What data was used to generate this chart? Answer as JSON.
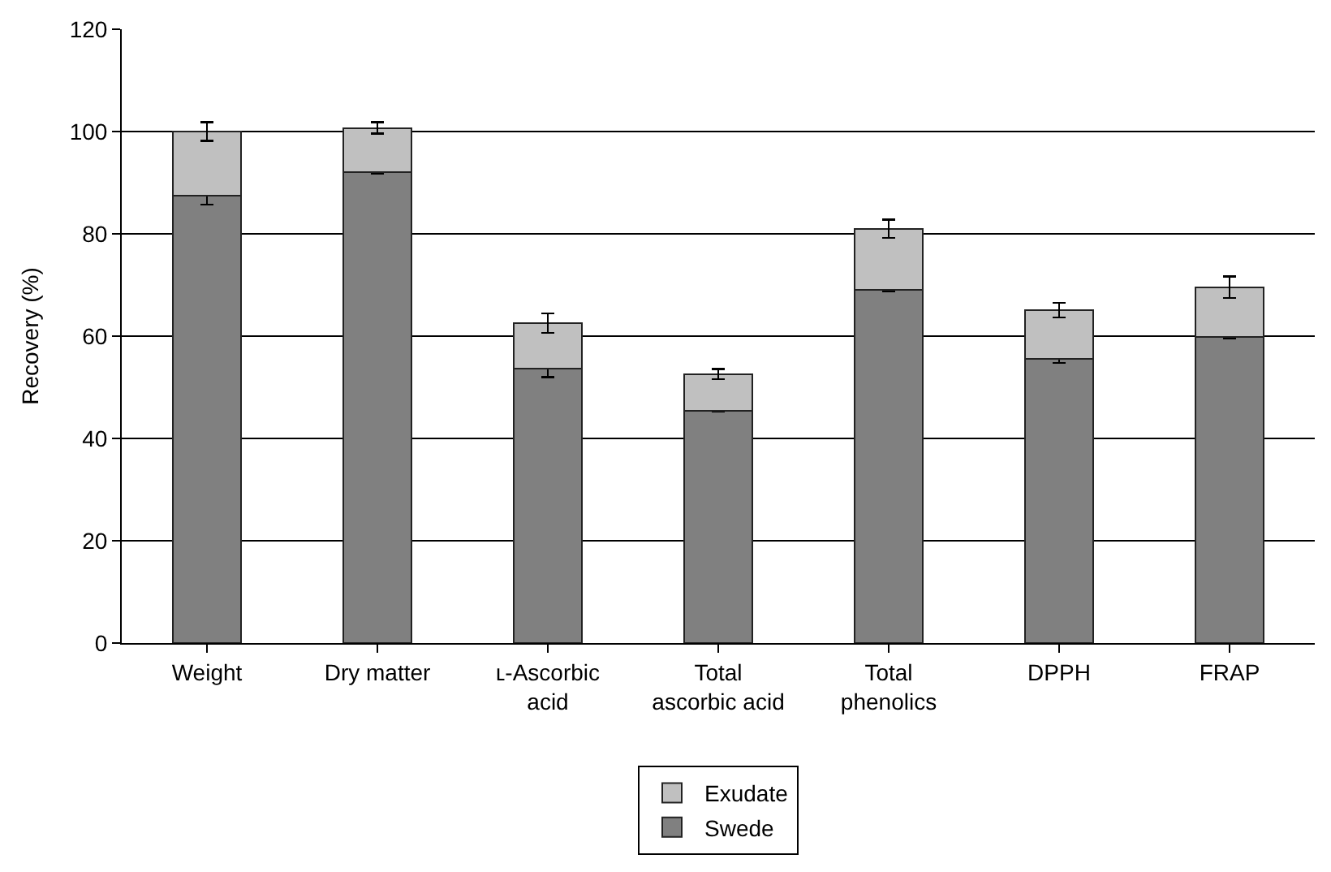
{
  "chart_data": {
    "type": "bar",
    "stacked": true,
    "ylabel": "Recovery (%)",
    "categories": [
      "Weight",
      "Dry matter",
      "ʟ-Ascorbic acid",
      "Total ascorbic acid",
      "Total phenolics",
      "DPPH",
      "FRAP"
    ],
    "series": [
      {
        "name": "Swede",
        "color": "#808080",
        "values": [
          87.4,
          92.0,
          53.7,
          45.4,
          69.0,
          55.6,
          59.8
        ],
        "errors": [
          1.7,
          0.2,
          1.7,
          0.2,
          0.2,
          0.8,
          0.3
        ]
      },
      {
        "name": "Exudate",
        "color": "#c0c0c0",
        "values": [
          12.6,
          8.7,
          8.8,
          7.2,
          12.0,
          9.5,
          9.8
        ],
        "errors": [
          1.8,
          1.1,
          1.9,
          1.0,
          1.8,
          1.4,
          2.1
        ]
      }
    ],
    "ylim": [
      0,
      120
    ],
    "yticks": [
      0,
      20,
      40,
      60,
      80,
      100,
      120
    ],
    "grid": "y",
    "legend": "bottom"
  }
}
